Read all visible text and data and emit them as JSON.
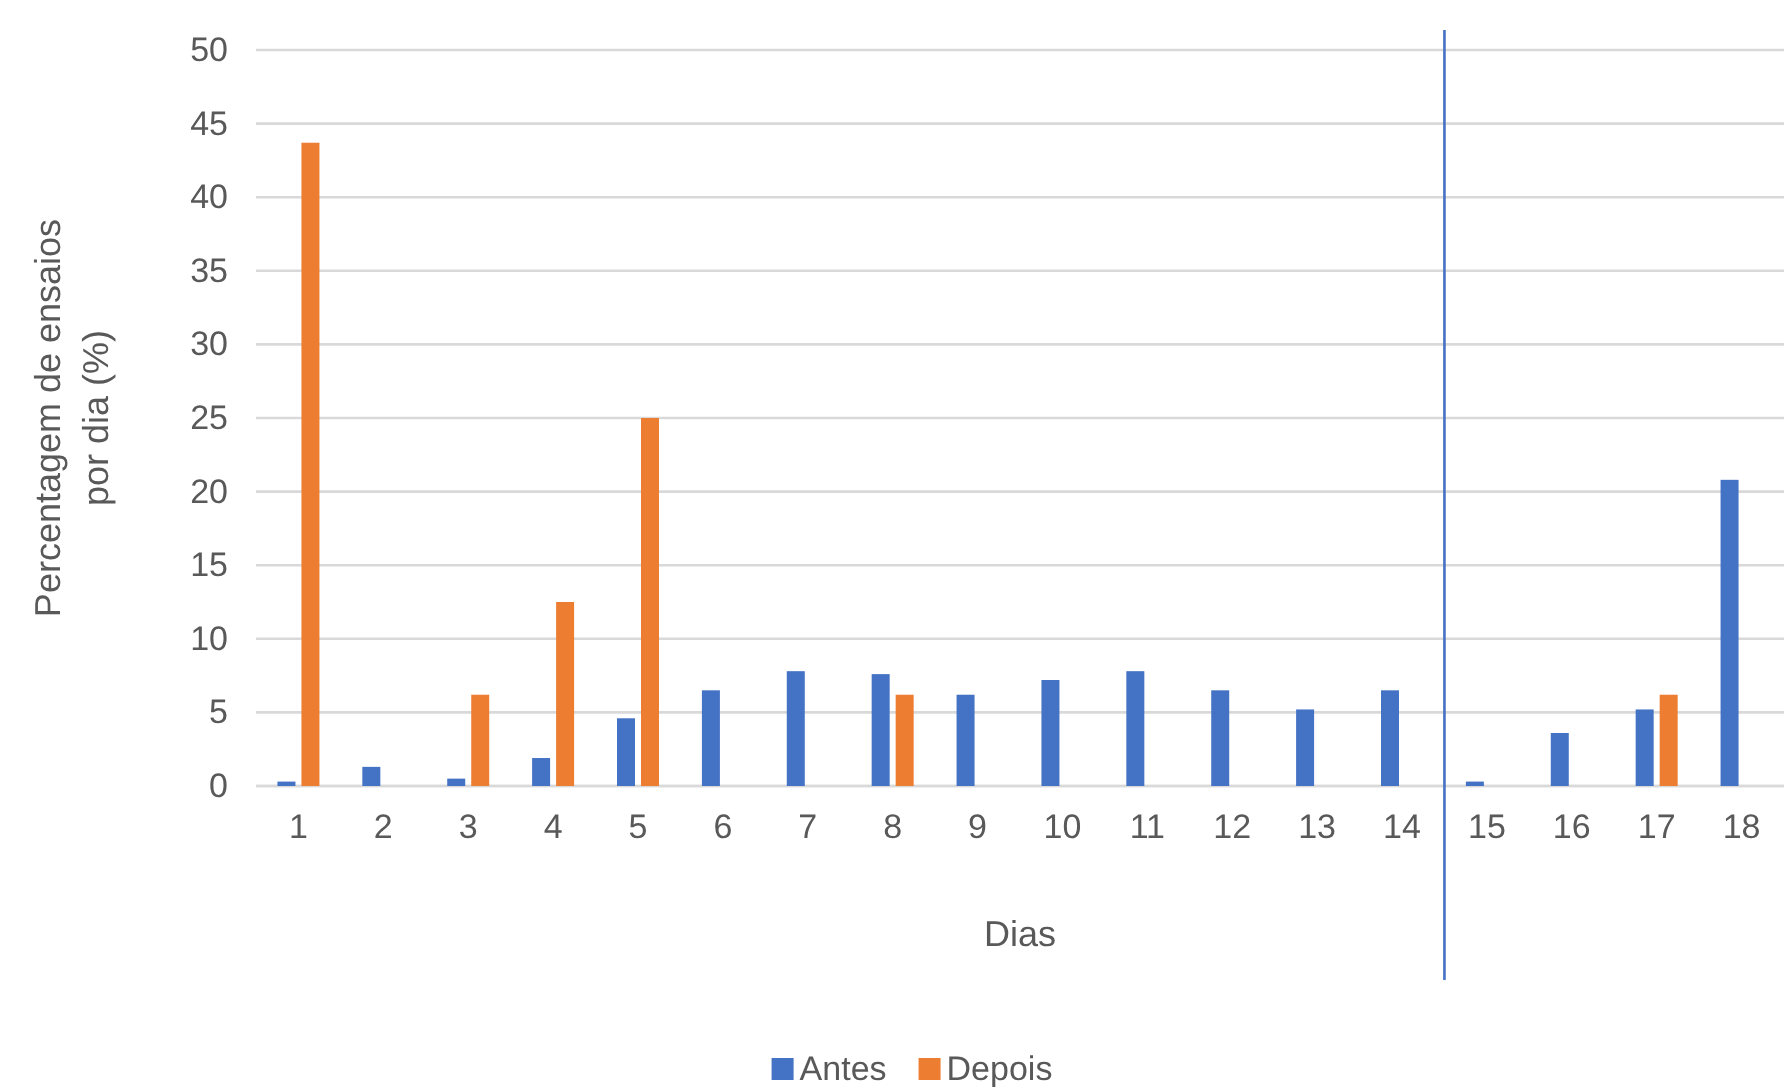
{
  "chart_data": {
    "type": "bar",
    "xlabel": "Dias",
    "ylabel": "Percentagem de ensaios por dia (%)",
    "x": [
      1,
      2,
      3,
      4,
      5,
      6,
      7,
      8,
      9,
      10,
      11,
      12,
      13,
      14,
      15,
      16,
      17,
      18
    ],
    "xlim": [
      0.5,
      18.5
    ],
    "xticks": [
      1,
      2,
      3,
      4,
      5,
      6,
      7,
      8,
      9,
      10,
      11,
      12,
      13,
      14,
      15,
      16,
      17,
      18
    ],
    "ylim": [
      0,
      50
    ],
    "yticks": [
      0,
      5,
      10,
      15,
      20,
      25,
      30,
      35,
      40,
      45,
      50
    ],
    "grid": "y",
    "legend": "bottom",
    "series": [
      {
        "name": "Antes",
        "color": "#4472c4",
        "values": [
          0.3,
          1.3,
          0.5,
          1.9,
          4.6,
          6.5,
          7.8,
          7.6,
          6.2,
          7.2,
          7.8,
          6.5,
          5.2,
          6.5,
          0.3,
          3.6,
          5.2,
          20.8
        ]
      },
      {
        "name": "Depois",
        "color": "#ed7d31",
        "values": [
          43.7,
          null,
          6.2,
          12.5,
          25,
          null,
          null,
          6.2,
          null,
          null,
          null,
          null,
          null,
          null,
          null,
          null,
          6.2,
          null
        ]
      }
    ],
    "ref_lines": [
      {
        "axis": "x",
        "value": 14.5,
        "color": "#4472c4"
      }
    ]
  }
}
